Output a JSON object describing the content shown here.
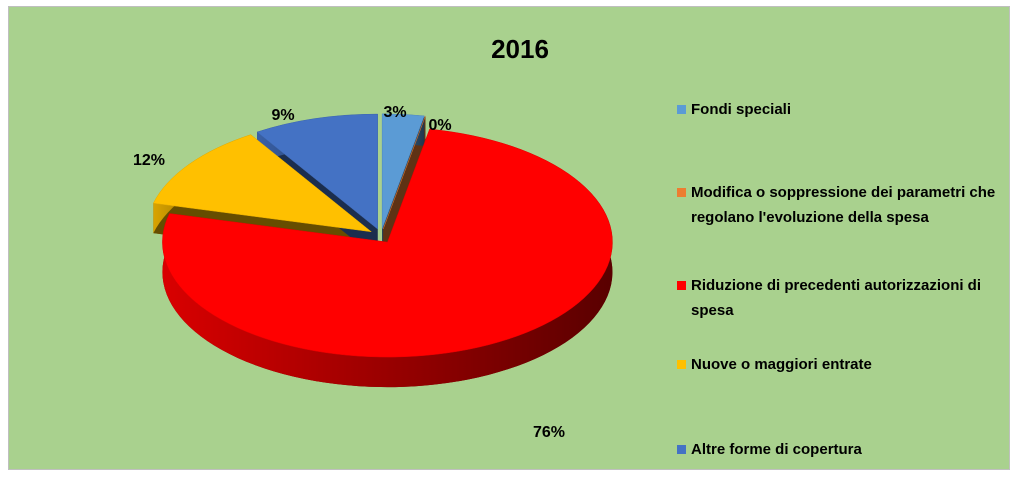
{
  "chart_data": {
    "type": "pie",
    "title": "2016",
    "categories": [
      "Fondi speciali",
      "Modifica o soppressione dei parametri che regolano l'evoluzione della spesa",
      "Riduzione di precedenti autorizzazioni di spesa",
      "Nuove o maggiori entrate",
      "Altre forme di copertura"
    ],
    "values": [
      3,
      0,
      76,
      12,
      9
    ],
    "value_labels": [
      "3%",
      "0%",
      "76%",
      "12%",
      "9%"
    ],
    "colors": [
      "#5b9bd5",
      "#ed7d31",
      "#ff0000",
      "#ffc000",
      "#4472c4"
    ],
    "legend": "right"
  }
}
